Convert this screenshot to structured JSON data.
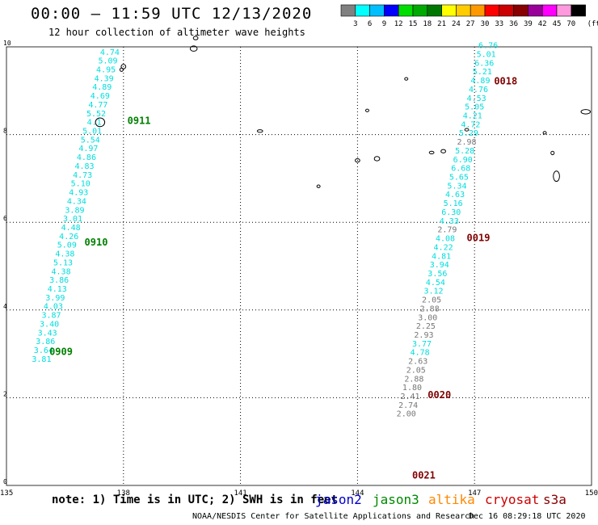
{
  "header": {
    "title": "00:00 – 11:59 UTC 12/13/2020",
    "subtitle": "12 hour collection of altimeter wave heights"
  },
  "colorbar": {
    "unit": "(ft)",
    "ticks": [
      "3",
      "6",
      "9",
      "12",
      "15",
      "18",
      "21",
      "24",
      "27",
      "30",
      "33",
      "36",
      "39",
      "42",
      "45",
      "70"
    ],
    "colors": [
      "#808080",
      "#00ffff",
      "#00bfff",
      "#0000ff",
      "#00dd00",
      "#00aa00",
      "#007700",
      "#ffff00",
      "#ffcc00",
      "#ff9900",
      "#ff0000",
      "#cc0000",
      "#880000",
      "#990099",
      "#ff00ff",
      "#ff99dd",
      "#000000"
    ]
  },
  "axes": {
    "x_ticks": [
      "135",
      "138",
      "141",
      "144",
      "147",
      "150"
    ],
    "y_ticks": [
      "0",
      "2",
      "4",
      "6",
      "8",
      "10"
    ]
  },
  "tracks": [
    {
      "satellite": "jason3",
      "label_color": "#008000",
      "value_color": "#00dddd",
      "labels": [
        {
          "text": "0909",
          "lon": 136.1,
          "lat": 2.97
        },
        {
          "text": "0910",
          "lon": 137.0,
          "lat": 5.47
        },
        {
          "text": "0911",
          "lon": 138.1,
          "lat": 8.24
        }
      ],
      "points": [
        {
          "v": "4.74",
          "lon": 137.65,
          "lat": 9.82
        },
        {
          "v": "5.09",
          "lon": 137.6,
          "lat": 9.62
        },
        {
          "v": "4.95",
          "lon": 137.55,
          "lat": 9.42
        },
        {
          "v": "4.39",
          "lon": 137.5,
          "lat": 9.22
        },
        {
          "v": "4.89",
          "lon": 137.45,
          "lat": 9.02
        },
        {
          "v": "4.69",
          "lon": 137.4,
          "lat": 8.82
        },
        {
          "v": "4.77",
          "lon": 137.35,
          "lat": 8.62
        },
        {
          "v": "5.52",
          "lon": 137.3,
          "lat": 8.42
        },
        {
          "v": "4.1",
          "lon": 137.25,
          "lat": 8.22
        },
        {
          "v": "5.01",
          "lon": 137.2,
          "lat": 8.02
        },
        {
          "v": "5.54",
          "lon": 137.15,
          "lat": 7.82
        },
        {
          "v": "4.97",
          "lon": 137.1,
          "lat": 7.62
        },
        {
          "v": "4.86",
          "lon": 137.05,
          "lat": 7.42
        },
        {
          "v": "4.83",
          "lon": 137.0,
          "lat": 7.22
        },
        {
          "v": "4.73",
          "lon": 136.95,
          "lat": 7.02
        },
        {
          "v": "5.10",
          "lon": 136.9,
          "lat": 6.82
        },
        {
          "v": "4.93",
          "lon": 136.85,
          "lat": 6.62
        },
        {
          "v": "4.34",
          "lon": 136.8,
          "lat": 6.42
        },
        {
          "v": "3.89",
          "lon": 136.75,
          "lat": 6.22
        },
        {
          "v": "3.01",
          "lon": 136.7,
          "lat": 6.02
        },
        {
          "v": "4.48",
          "lon": 136.65,
          "lat": 5.82
        },
        {
          "v": "4.26",
          "lon": 136.6,
          "lat": 5.62
        },
        {
          "v": "5.09",
          "lon": 136.55,
          "lat": 5.42
        },
        {
          "v": "4.38",
          "lon": 136.5,
          "lat": 5.22
        },
        {
          "v": "5.13",
          "lon": 136.45,
          "lat": 5.02
        },
        {
          "v": "4.38",
          "lon": 136.4,
          "lat": 4.82
        },
        {
          "v": "3.86",
          "lon": 136.35,
          "lat": 4.62
        },
        {
          "v": "4.13",
          "lon": 136.3,
          "lat": 4.42
        },
        {
          "v": "3.99",
          "lon": 136.25,
          "lat": 4.22
        },
        {
          "v": "4.03",
          "lon": 136.2,
          "lat": 4.02
        },
        {
          "v": "3.87",
          "lon": 136.15,
          "lat": 3.82
        },
        {
          "v": "3.40",
          "lon": 136.1,
          "lat": 3.62
        },
        {
          "v": "3.43",
          "lon": 136.05,
          "lat": 3.42
        },
        {
          "v": "3.86",
          "lon": 136.0,
          "lat": 3.22
        },
        {
          "v": "3.64",
          "lon": 135.95,
          "lat": 3.02
        },
        {
          "v": "3.81",
          "lon": 135.9,
          "lat": 2.82
        }
      ]
    },
    {
      "satellite": "cryosat",
      "label_color": "#800000",
      "value_color": "#00dddd",
      "labels": [
        {
          "text": "0018",
          "lon": 147.5,
          "lat": 9.14
        },
        {
          "text": "0019",
          "lon": 146.8,
          "lat": 5.57
        },
        {
          "text": "0020",
          "lon": 145.8,
          "lat": 1.99
        },
        {
          "text": "0021",
          "lon": 145.4,
          "lat": 0.16
        }
      ],
      "points": [
        {
          "v": "6.76",
          "lon": 147.35,
          "lat": 9.97,
          "c": "#00dddd"
        },
        {
          "v": "5.01",
          "lon": 147.3,
          "lat": 9.77,
          "c": "#00dddd"
        },
        {
          "v": "6.36",
          "lon": 147.25,
          "lat": 9.57,
          "c": "#00dddd"
        },
        {
          "v": "5.21",
          "lon": 147.2,
          "lat": 9.37,
          "c": "#00dddd"
        },
        {
          "v": "4.89",
          "lon": 147.15,
          "lat": 9.17,
          "c": "#00dddd"
        },
        {
          "v": "4.76",
          "lon": 147.1,
          "lat": 8.97,
          "c": "#00dddd"
        },
        {
          "v": "4.53",
          "lon": 147.05,
          "lat": 8.77,
          "c": "#00dddd"
        },
        {
          "v": "5.05",
          "lon": 147.0,
          "lat": 8.57,
          "c": "#00dddd"
        },
        {
          "v": "4.21",
          "lon": 146.95,
          "lat": 8.37,
          "c": "#00dddd"
        },
        {
          "v": "4.72",
          "lon": 146.9,
          "lat": 8.17,
          "c": "#00dddd"
        },
        {
          "v": "5.29",
          "lon": 146.85,
          "lat": 7.97,
          "c": "#00dddd"
        },
        {
          "v": "2.98",
          "lon": 146.8,
          "lat": 7.77,
          "c": "#777777"
        },
        {
          "v": "5.28",
          "lon": 146.75,
          "lat": 7.57,
          "c": "#00dddd"
        },
        {
          "v": "6.90",
          "lon": 146.7,
          "lat": 7.37,
          "c": "#00dddd"
        },
        {
          "v": "6.68",
          "lon": 146.65,
          "lat": 7.17,
          "c": "#00dddd"
        },
        {
          "v": "5.65",
          "lon": 146.6,
          "lat": 6.97,
          "c": "#00dddd"
        },
        {
          "v": "5.34",
          "lon": 146.55,
          "lat": 6.77,
          "c": "#00dddd"
        },
        {
          "v": "4.63",
          "lon": 146.5,
          "lat": 6.57,
          "c": "#00dddd"
        },
        {
          "v": "5.16",
          "lon": 146.45,
          "lat": 6.37,
          "c": "#00dddd"
        },
        {
          "v": "6.30",
          "lon": 146.4,
          "lat": 6.17,
          "c": "#00dddd"
        },
        {
          "v": "4.33",
          "lon": 146.35,
          "lat": 5.97,
          "c": "#00dddd"
        },
        {
          "v": "2.79",
          "lon": 146.3,
          "lat": 5.77,
          "c": "#777777"
        },
        {
          "v": "4.08",
          "lon": 146.25,
          "lat": 5.57,
          "c": "#00dddd"
        },
        {
          "v": "4.22",
          "lon": 146.2,
          "lat": 5.37,
          "c": "#00dddd"
        },
        {
          "v": "4.81",
          "lon": 146.15,
          "lat": 5.17,
          "c": "#00dddd"
        },
        {
          "v": "3.94",
          "lon": 146.1,
          "lat": 4.97,
          "c": "#00dddd"
        },
        {
          "v": "3.56",
          "lon": 146.05,
          "lat": 4.77,
          "c": "#00dddd"
        },
        {
          "v": "4.54",
          "lon": 146.0,
          "lat": 4.57,
          "c": "#00dddd"
        },
        {
          "v": "3.12",
          "lon": 145.95,
          "lat": 4.37,
          "c": "#00dddd"
        },
        {
          "v": "2.05",
          "lon": 145.9,
          "lat": 4.17,
          "c": "#777777"
        },
        {
          "v": "2.88",
          "lon": 145.85,
          "lat": 3.97,
          "c": "#777777"
        },
        {
          "v": "3.00",
          "lon": 145.8,
          "lat": 3.77,
          "c": "#777777"
        },
        {
          "v": "2.25",
          "lon": 145.75,
          "lat": 3.57,
          "c": "#777777"
        },
        {
          "v": "2.93",
          "lon": 145.7,
          "lat": 3.37,
          "c": "#777777"
        },
        {
          "v": "3.77",
          "lon": 145.65,
          "lat": 3.17,
          "c": "#00dddd"
        },
        {
          "v": "4.78",
          "lon": 145.6,
          "lat": 2.97,
          "c": "#00dddd"
        },
        {
          "v": "2.63",
          "lon": 145.55,
          "lat": 2.77,
          "c": "#777777"
        },
        {
          "v": "2.05",
          "lon": 145.5,
          "lat": 2.57,
          "c": "#777777"
        },
        {
          "v": "2.88",
          "lon": 145.45,
          "lat": 2.37,
          "c": "#777777"
        },
        {
          "v": "1.80",
          "lon": 145.4,
          "lat": 2.17,
          "c": "#777777"
        },
        {
          "v": "2.41",
          "lon": 145.35,
          "lat": 1.97,
          "c": "#777777"
        },
        {
          "v": "2.74",
          "lon": 145.3,
          "lat": 1.77,
          "c": "#777777"
        },
        {
          "v": "2.00",
          "lon": 145.25,
          "lat": 1.57,
          "c": "#777777"
        }
      ]
    }
  ],
  "footer": {
    "note": "note: 1) Time is in UTC; 2) SWH is in feet",
    "satellites": [
      {
        "name": "jason2",
        "color": "#0000cc"
      },
      {
        "name": "jason3",
        "color": "#008800"
      },
      {
        "name": "altika",
        "color": "#ff8800"
      },
      {
        "name": "cryosat",
        "color": "#cc0000"
      },
      {
        "name": "s3a",
        "color": "#880000"
      }
    ],
    "credit": "NOAA/NESDIS Center for Satellite Applications and Research",
    "timestamp": "Dec 16 08:29:18 UTC 2020"
  }
}
